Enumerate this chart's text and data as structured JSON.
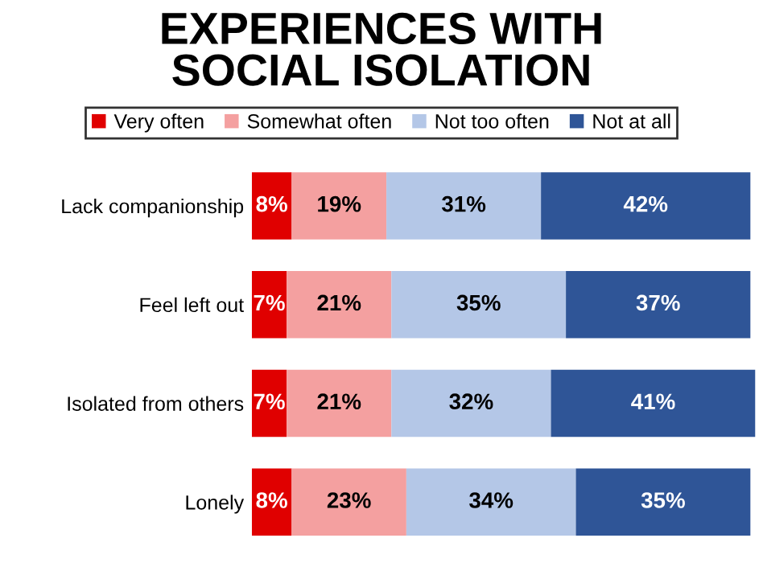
{
  "chart_data": {
    "type": "bar",
    "title": "EXPERIENCES WITH\nSOCIAL ISOLATION",
    "orientation": "horizontal",
    "stacked": true,
    "legend": "top",
    "categories": [
      "Lack companionship",
      "Feel left out",
      "Isolated from others",
      "Lonely"
    ],
    "series": [
      {
        "name": "Very often",
        "color": "#e00000",
        "values": [
          8,
          7,
          7,
          8
        ],
        "value_labels": [
          "8%",
          "7%",
          "7%",
          "8%"
        ]
      },
      {
        "name": "Somewhat often",
        "color": "#f4a0a0",
        "values": [
          19,
          21,
          21,
          23
        ],
        "value_labels": [
          "19%",
          "21%",
          "21%",
          "23%"
        ]
      },
      {
        "name": "Not too often",
        "color": "#b4c7e7",
        "values": [
          31,
          35,
          32,
          34
        ],
        "value_labels": [
          "31%",
          "35%",
          "32%",
          "34%"
        ]
      },
      {
        "name": "Not at all",
        "color": "#2f5597",
        "values": [
          42,
          37,
          41,
          35
        ],
        "value_labels": [
          "42%",
          "37%",
          "41%",
          "35%"
        ]
      }
    ]
  }
}
